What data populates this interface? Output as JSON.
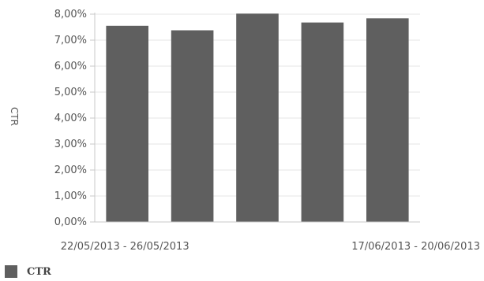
{
  "chart_data": {
    "type": "bar",
    "ylabel": "CTR",
    "xlabel": "",
    "ylim": [
      0,
      8
    ],
    "yticks": [
      "0,00%",
      "1,00%",
      "2,00%",
      "3,00%",
      "4,00%",
      "5,00%",
      "6,00%",
      "7,00%",
      "8,00%"
    ],
    "categories": [
      "22/05/2013 - 26/05/2013",
      "",
      "",
      "",
      "17/06/2013 - 20/06/2013"
    ],
    "series": [
      {
        "name": "CTR",
        "color": "#5f5f5f",
        "values": [
          7.55,
          7.38,
          8.02,
          7.68,
          7.84
        ]
      }
    ],
    "legend": {
      "position": "bottom-left",
      "label": "CTR"
    },
    "grid": true,
    "gridColor": "#e6e6e6",
    "axisColor": "#c8c8c8"
  }
}
